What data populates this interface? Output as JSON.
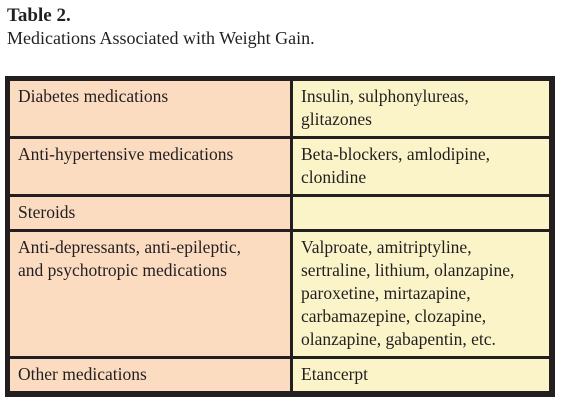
{
  "caption": {
    "label": "Table 2.",
    "title": "Medications Associated with Weight Gain."
  },
  "table": {
    "rows": [
      {
        "category": [
          "Diabetes medications"
        ],
        "examples": [
          "Insulin, sulphonylureas,",
          "glitazones"
        ]
      },
      {
        "category": [
          "Anti-hypertensive medications"
        ],
        "examples": [
          "Beta-blockers, amlodipine,",
          "clonidine"
        ]
      },
      {
        "category": [
          "Steroids"
        ],
        "examples": []
      },
      {
        "category": [
          "Anti-depressants, anti-epileptic,",
          "and psychotropic medications"
        ],
        "examples": [
          "Valproate, amitriptyline,",
          "sertraline, lithium, olanzapine,",
          "paroxetine, mirtazapine,",
          "carbamazepine, clozapine,",
          "olanzapine, gabapentin,  etc."
        ]
      },
      {
        "category": [
          "Other medications"
        ],
        "examples": [
          "Etancerpt"
        ]
      }
    ]
  },
  "colors": {
    "category_cell": "#fbdcc1",
    "examples_cell": "#fbf4c8",
    "border": "#231f20"
  }
}
